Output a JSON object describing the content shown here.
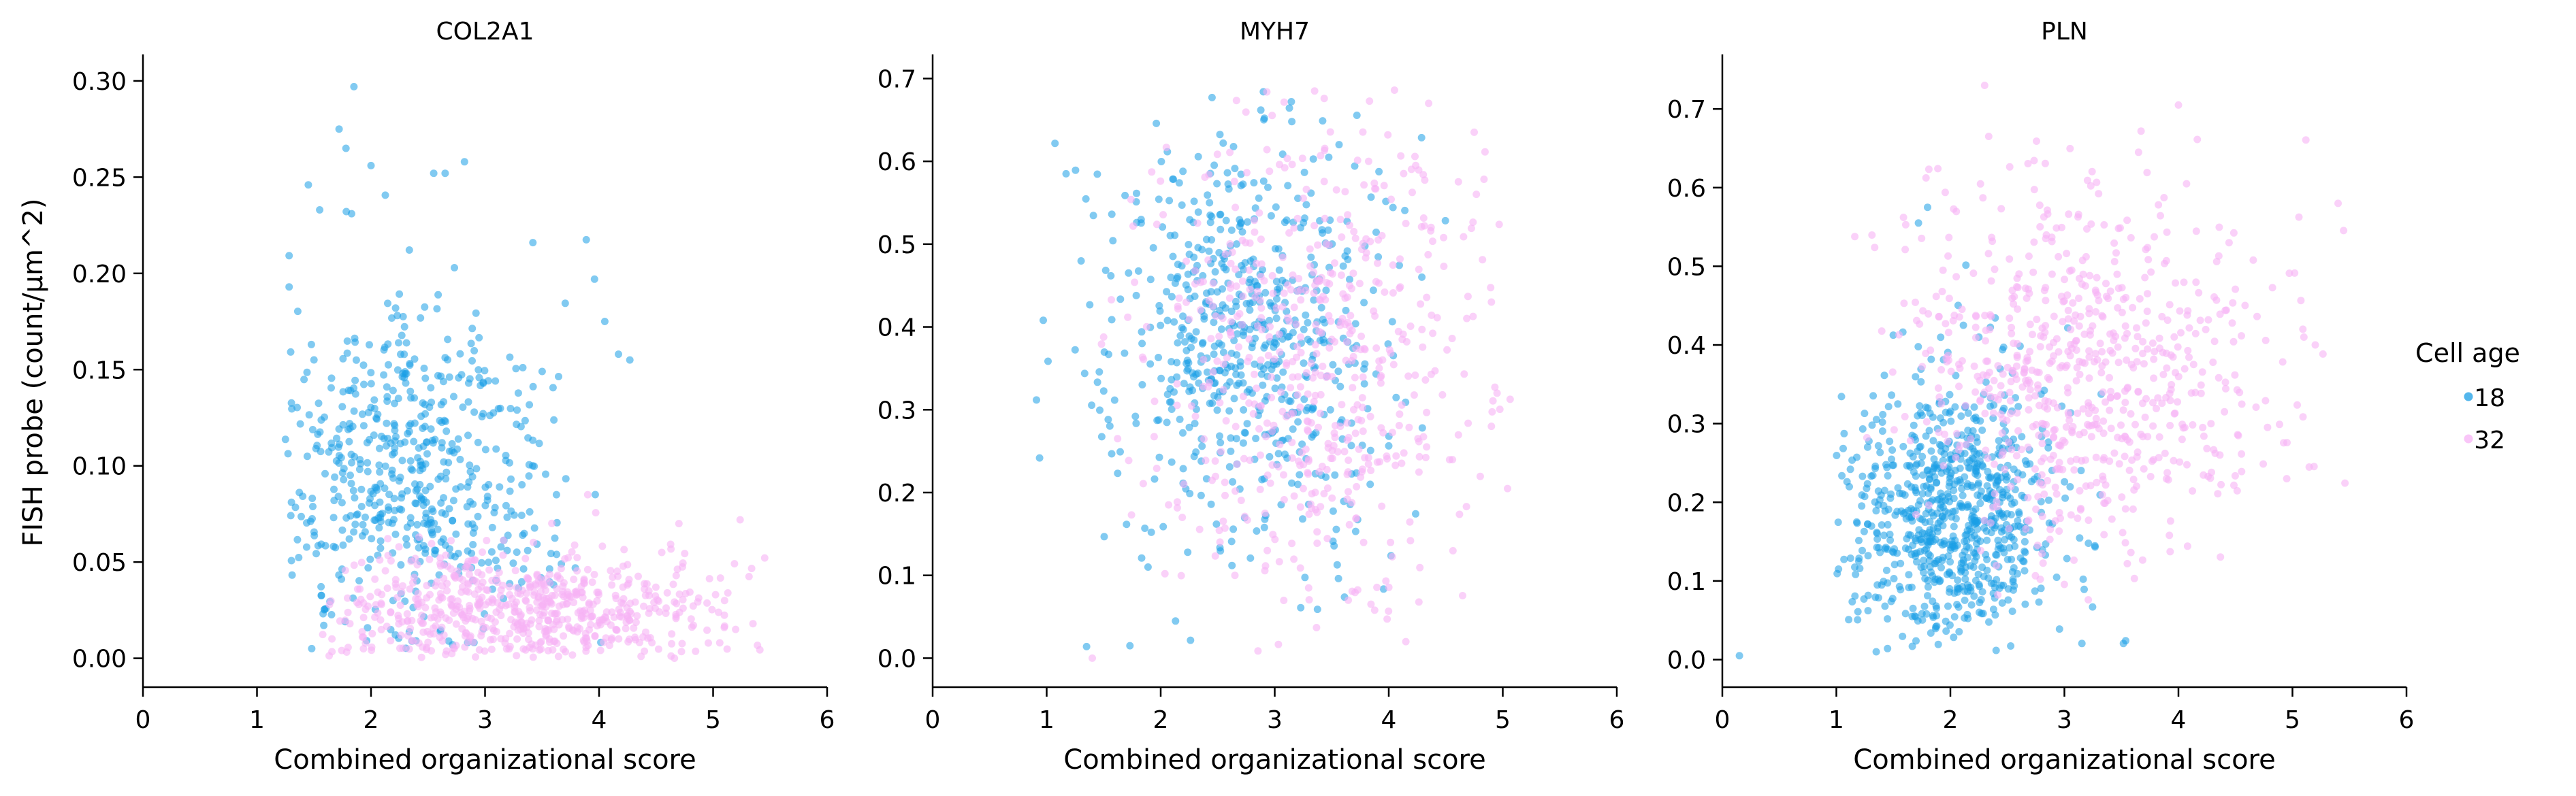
{
  "chart_data": {
    "type": "scatter",
    "ylabel": "FISH probe (count/μm^2)",
    "legend": {
      "title": "Cell age",
      "placement": "right",
      "entries": [
        {
          "label": "18",
          "color": "#1a9ee6"
        },
        {
          "label": "32",
          "color": "#f7b3f5"
        }
      ]
    },
    "panels": [
      {
        "title": "COL2A1",
        "xlabel": "Combined organizational score",
        "xlim": [
          0,
          6
        ],
        "ylim": [
          -0.015,
          0.312
        ],
        "xticks": [
          "0",
          "1",
          "2",
          "3",
          "4",
          "5",
          "6"
        ],
        "yticks": [
          "0.00",
          "0.05",
          "0.10",
          "0.15",
          "0.20",
          "0.25",
          "0.30"
        ],
        "series": [
          {
            "name": "18",
            "color": "#1a9ee6",
            "n": 560,
            "cx": 2.35,
            "sx": 0.62,
            "cy": 0.092,
            "sy": 0.045,
            "xmin": 1.2,
            "xmax": 4.4,
            "ymin": 0.005,
            "ymax": 0.3,
            "points": [
              [
                1.85,
                0.297
              ],
              [
                1.72,
                0.275
              ],
              [
                1.78,
                0.265
              ],
              [
                1.45,
                0.246
              ],
              [
                1.55,
                0.233
              ],
              [
                1.83,
                0.231
              ],
              [
                2.0,
                0.256
              ],
              [
                2.55,
                0.252
              ],
              [
                2.65,
                0.252
              ],
              [
                2.82,
                0.258
              ],
              [
                3.42,
                0.216
              ],
              [
                3.96,
                0.197
              ],
              [
                4.05,
                0.175
              ],
              [
                4.17,
                0.158
              ],
              [
                4.27,
                0.155
              ],
              [
                1.48,
                0.005
              ]
            ]
          },
          {
            "name": "32",
            "color": "#f7b3f5",
            "n": 640,
            "cx": 3.35,
            "sx": 0.85,
            "cy": 0.025,
            "sy": 0.016,
            "xmin": 1.55,
            "xmax": 5.6,
            "ymin": 0.0,
            "ymax": 0.1,
            "points": [
              [
                5.35,
                0.018
              ],
              [
                5.1,
                0.03
              ],
              [
                4.55,
                0.055
              ],
              [
                4.7,
                0.07
              ],
              [
                3.9,
                0.085
              ]
            ]
          }
        ]
      },
      {
        "title": "MYH7",
        "xlabel": "Combined organizational score",
        "xlim": [
          0,
          6
        ],
        "ylim": [
          -0.035,
          0.725
        ],
        "xticks": [
          "0",
          "1",
          "2",
          "3",
          "4",
          "5",
          "6"
        ],
        "yticks": [
          "0.0",
          "0.1",
          "0.2",
          "0.3",
          "0.4",
          "0.5",
          "0.6",
          "0.7"
        ],
        "series": [
          {
            "name": "18",
            "color": "#1a9ee6",
            "n": 620,
            "cx": 2.75,
            "sx": 0.62,
            "cy": 0.39,
            "sy": 0.13,
            "xmin": 0.9,
            "xmax": 4.7,
            "ymin": 0.0,
            "ymax": 0.69,
            "points": [
              [
                2.45,
                0.677
              ],
              [
                2.9,
                0.684
              ],
              [
                0.97,
                0.408
              ],
              [
                1.17,
                0.585
              ],
              [
                1.35,
                0.014
              ],
              [
                1.73,
                0.015
              ],
              [
                3.15,
                0.648
              ]
            ]
          },
          {
            "name": "32",
            "color": "#f7b3f5",
            "n": 560,
            "cx": 3.4,
            "sx": 0.75,
            "cy": 0.36,
            "sy": 0.15,
            "xmin": 1.0,
            "xmax": 5.1,
            "ymin": 0.0,
            "ymax": 0.69,
            "points": [
              [
                4.05,
                0.686
              ],
              [
                4.35,
                0.67
              ],
              [
                4.9,
                0.43
              ],
              [
                4.95,
                0.32
              ],
              [
                4.9,
                0.28
              ],
              [
                3.35,
                0.685
              ],
              [
                1.4,
                0.0
              ],
              [
                4.15,
                0.02
              ]
            ]
          }
        ]
      },
      {
        "title": "PLN",
        "xlabel": "Combined organizational score",
        "xlim": [
          0,
          6
        ],
        "ylim": [
          -0.035,
          0.765
        ],
        "xticks": [
          "0",
          "1",
          "2",
          "3",
          "4",
          "5",
          "6"
        ],
        "yticks": [
          "0.0",
          "0.1",
          "0.2",
          "0.3",
          "0.4",
          "0.5",
          "0.6",
          "0.7"
        ],
        "series": [
          {
            "name": "18",
            "color": "#1a9ee6",
            "n": 780,
            "cx": 2.0,
            "sx": 0.45,
            "cy": 0.18,
            "sy": 0.085,
            "xmin": 1.0,
            "xmax": 3.7,
            "ymin": 0.01,
            "ymax": 0.58,
            "points": [
              [
                0.15,
                0.005
              ],
              [
                1.72,
                0.555
              ],
              [
                1.8,
                0.575
              ],
              [
                1.35,
                0.01
              ],
              [
                2.25,
                0.41
              ]
            ]
          },
          {
            "name": "32",
            "color": "#f7b3f5",
            "n": 700,
            "cx": 3.2,
            "sx": 0.8,
            "cy": 0.37,
            "sy": 0.12,
            "xmin": 1.0,
            "xmax": 5.5,
            "ymin": 0.0,
            "ymax": 0.72,
            "points": [
              [
                2.3,
                0.73
              ],
              [
                4.0,
                0.705
              ],
              [
                5.4,
                0.58
              ],
              [
                5.1,
                0.41
              ],
              [
                5.2,
                0.4
              ],
              [
                4.95,
                0.23
              ],
              [
                3.65,
                0.645
              ]
            ]
          }
        ]
      }
    ]
  }
}
